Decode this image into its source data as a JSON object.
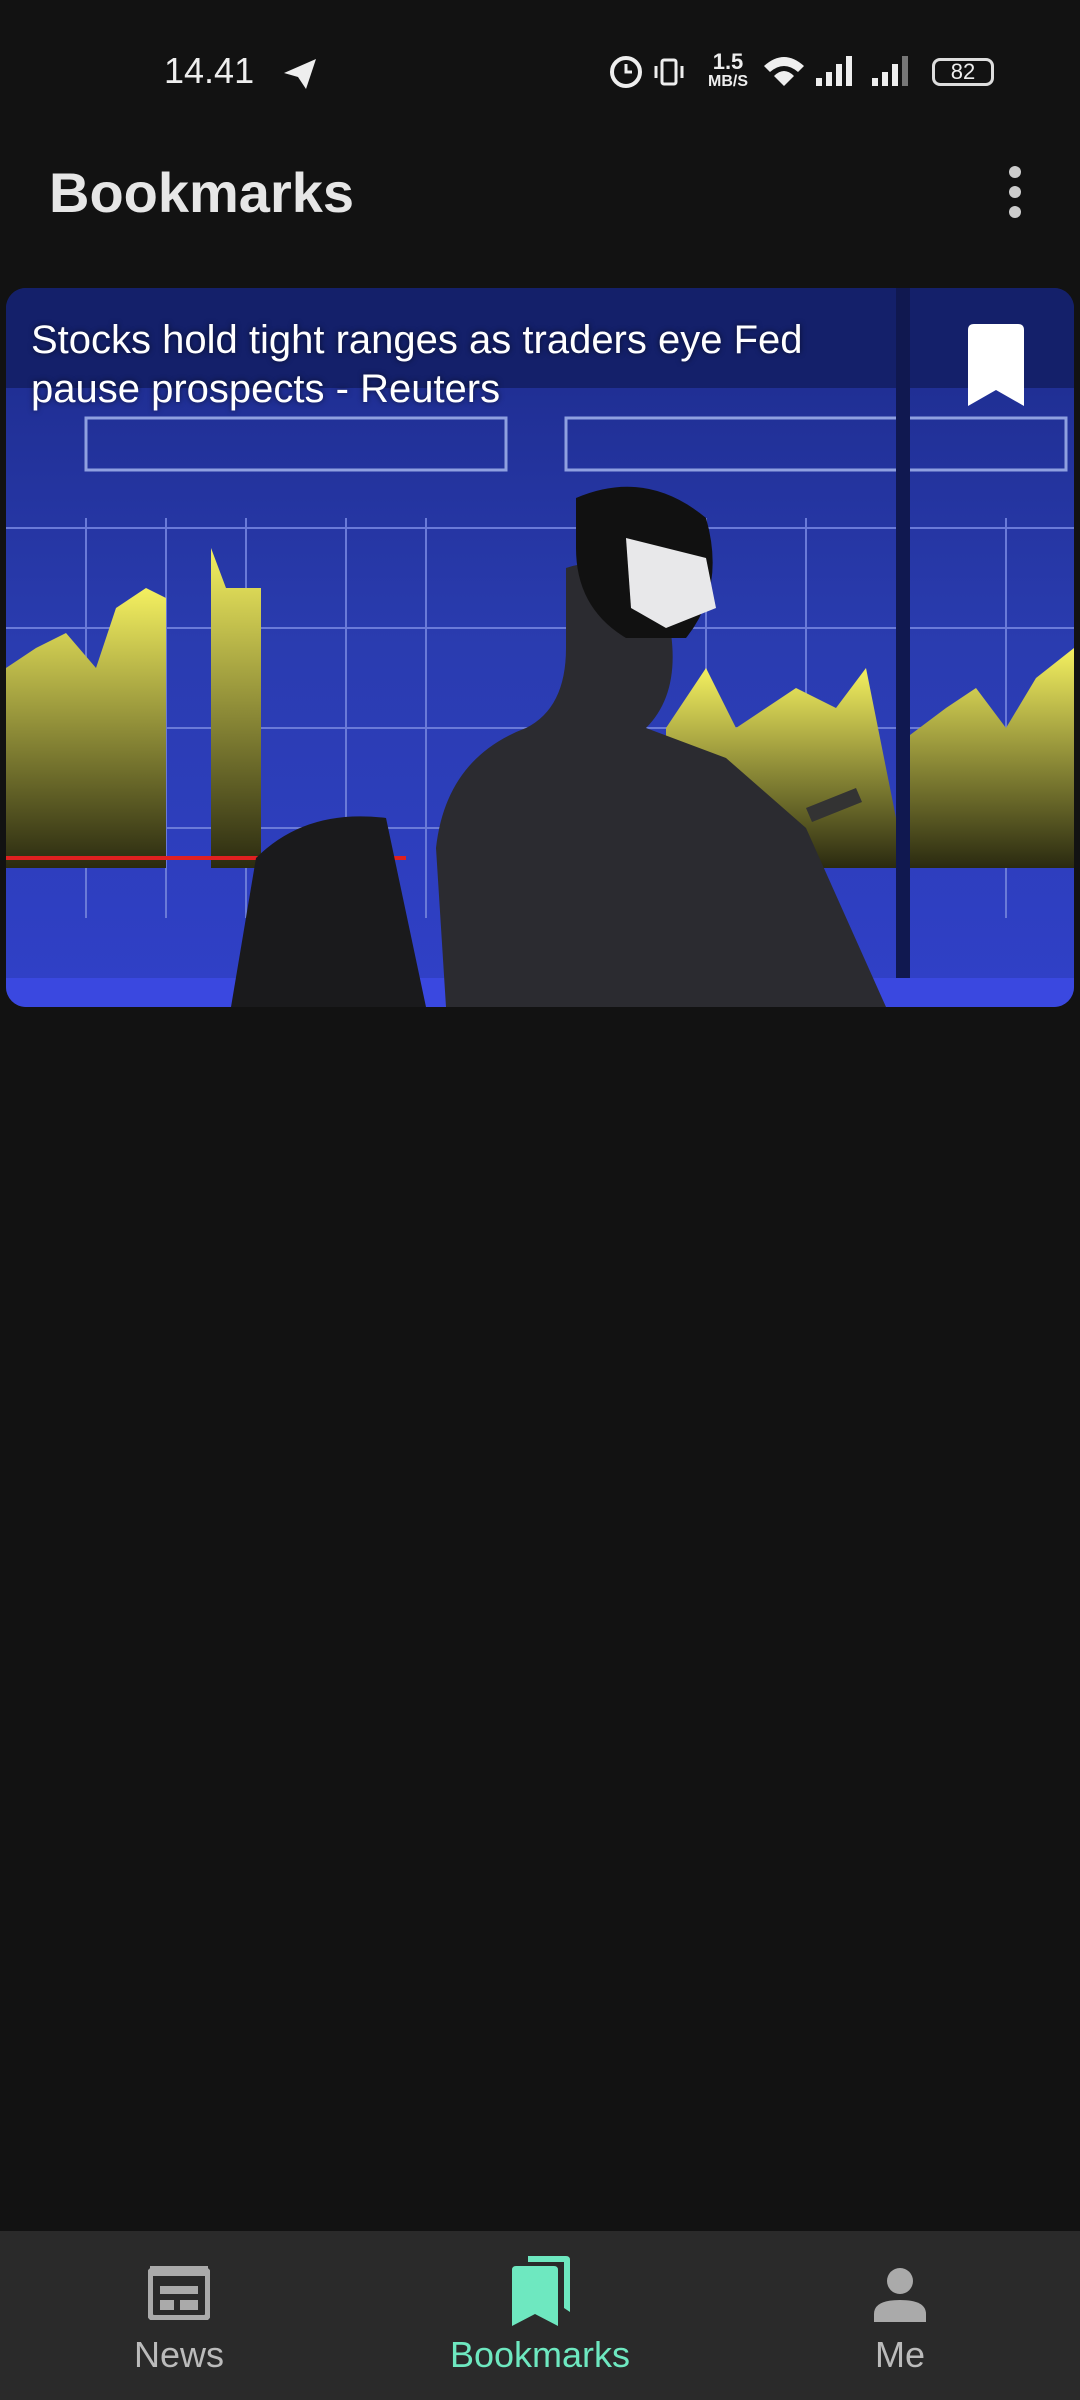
{
  "status": {
    "time": "14.41",
    "net_speed": "1.5",
    "net_unit": "MB/S",
    "battery": "82"
  },
  "header": {
    "title": "Bookmarks"
  },
  "articles": [
    {
      "title": "Stocks hold tight ranges as traders eye Fed pause prospects - Reuters"
    }
  ],
  "nav": [
    {
      "label": "News"
    },
    {
      "label": "Bookmarks"
    },
    {
      "label": "Me"
    }
  ]
}
